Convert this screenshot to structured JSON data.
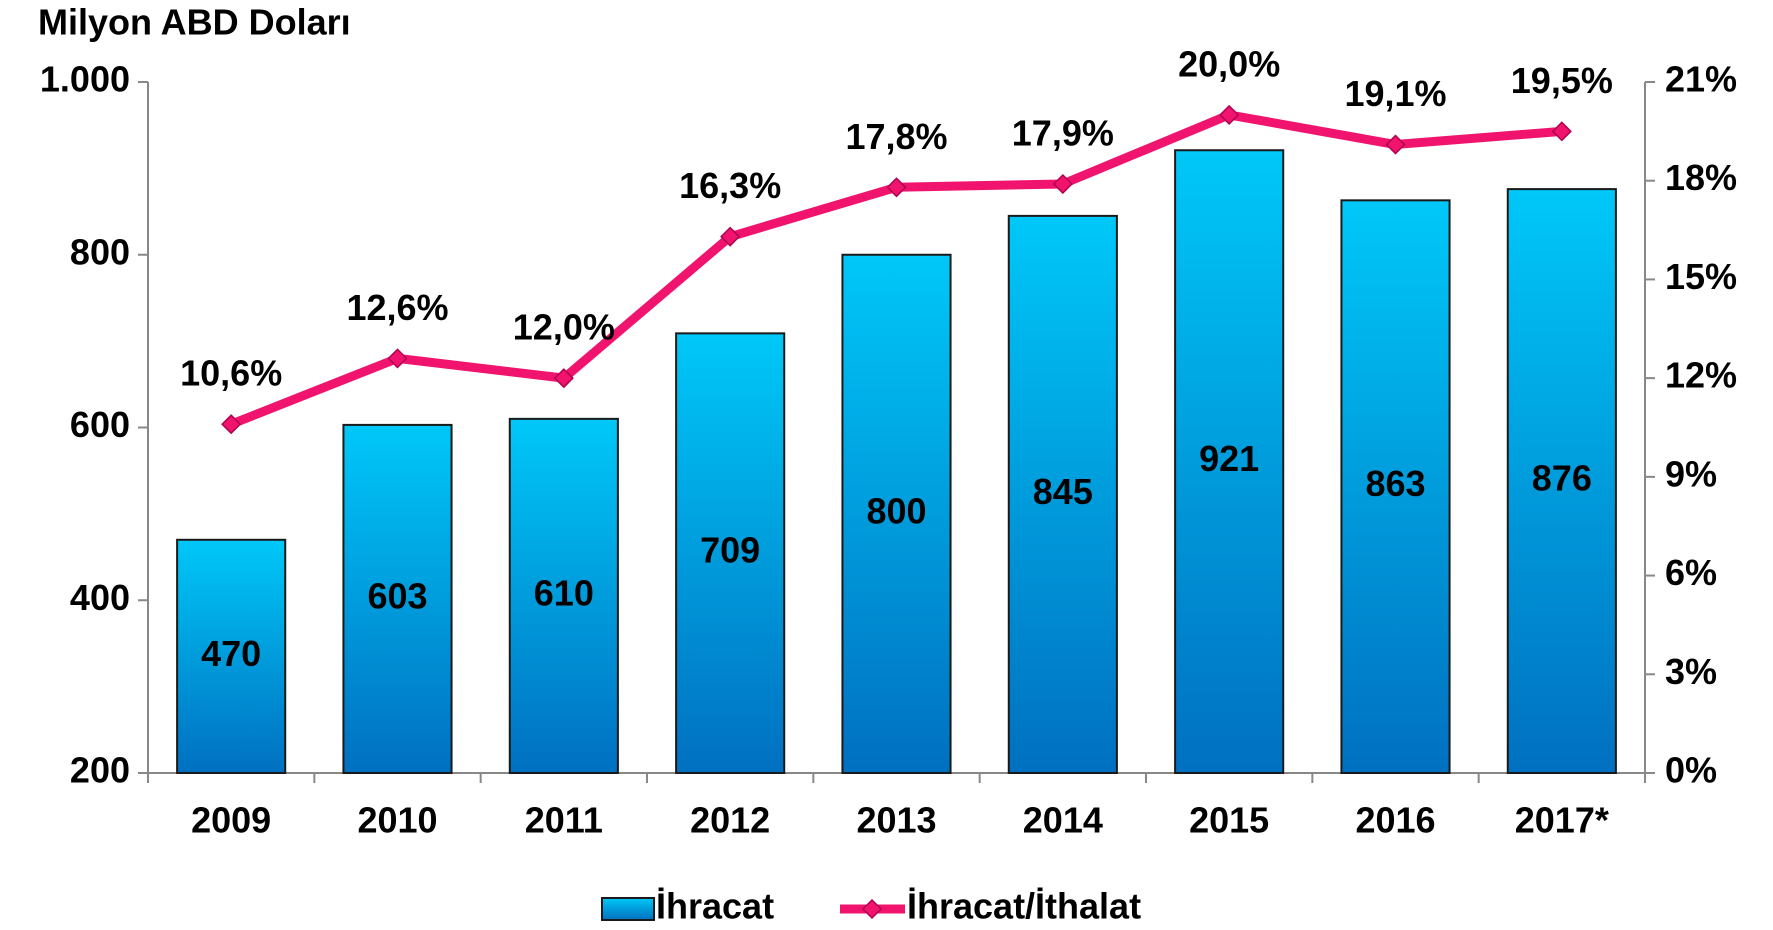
{
  "chart_data": {
    "type": "bar",
    "y_label": "Milyon ABD Doları",
    "categories": [
      "2009",
      "2010",
      "2011",
      "2012",
      "2013",
      "2014",
      "2015",
      "2016",
      "2017*"
    ],
    "series": [
      {
        "name": "İhracat",
        "type": "bar",
        "color": "#0070c0",
        "values": [
          470,
          603,
          610,
          709,
          800,
          845,
          921,
          863,
          876
        ]
      },
      {
        "name": "İhracat/İthalat",
        "type": "line",
        "axis": "y2",
        "color": "#f0146e",
        "values": [
          10.6,
          12.6,
          12.0,
          16.3,
          17.8,
          17.9,
          20.0,
          19.1,
          19.5
        ],
        "value_labels": [
          "10,6%",
          "12,6%",
          "12,0%",
          "16,3%",
          "17,8%",
          "17,9%",
          "20,0%",
          "19,1%",
          "19,5%"
        ]
      }
    ],
    "ylim": [
      200,
      1000
    ],
    "yticks": [
      200,
      400,
      600,
      800,
      {
        "value": 1000,
        "label": "1.000"
      }
    ],
    "y2lim": [
      0,
      21
    ],
    "y2ticks": [
      {
        "value": 0,
        "label": "0%"
      },
      {
        "value": 3,
        "label": "3%"
      },
      {
        "value": 6,
        "label": "6%"
      },
      {
        "value": 9,
        "label": "9%"
      },
      {
        "value": 12,
        "label": "12%"
      },
      {
        "value": 15,
        "label": "15%"
      },
      {
        "value": 18,
        "label": "18%"
      },
      {
        "value": 21,
        "label": "21%"
      }
    ],
    "legend": "bottom"
  }
}
